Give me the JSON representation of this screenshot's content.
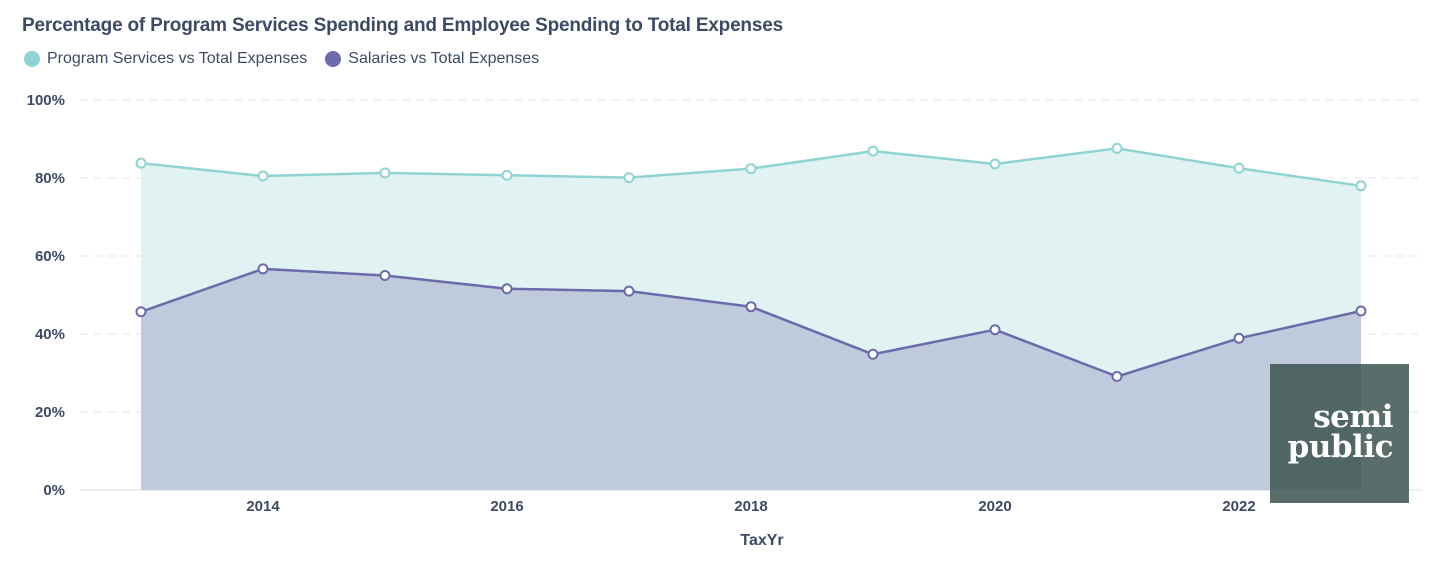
{
  "chart_data": {
    "type": "area",
    "title": "Percentage of Program Services Spending and Employee Spending to Total Expenses",
    "xlabel": "TaxYr",
    "ylabel": "",
    "x": [
      2013,
      2014,
      2015,
      2016,
      2017,
      2018,
      2019,
      2020,
      2021,
      2022,
      2023
    ],
    "xticks": [
      2014,
      2016,
      2018,
      2020,
      2022
    ],
    "xlim": [
      2012.5,
      2023.5
    ],
    "ylim": [
      0,
      100
    ],
    "yticks": [
      0,
      20,
      40,
      60,
      80,
      100
    ],
    "ytick_labels": [
      "0%",
      "20%",
      "40%",
      "60%",
      "80%",
      "100%"
    ],
    "grid": "horizontal-dashed",
    "legend_position": "top-left",
    "series": [
      {
        "name": "Program Services vs Total Expenses",
        "color": "#8fd3d3",
        "fill": "#e0f3f2",
        "values": [
          83.8,
          80.5,
          81.3,
          80.7,
          80.1,
          82.4,
          86.9,
          83.6,
          87.6,
          82.5,
          78.0
        ]
      },
      {
        "name": "Salaries vs Total Expenses",
        "color": "#6b6aaa",
        "fill": "#bfcadd",
        "values": [
          45.7,
          56.7,
          55.0,
          51.6,
          51.0,
          47.0,
          34.8,
          41.1,
          29.1,
          38.9,
          45.9
        ]
      }
    ]
  },
  "watermark": {
    "line1": "semi",
    "line2": "public"
  }
}
